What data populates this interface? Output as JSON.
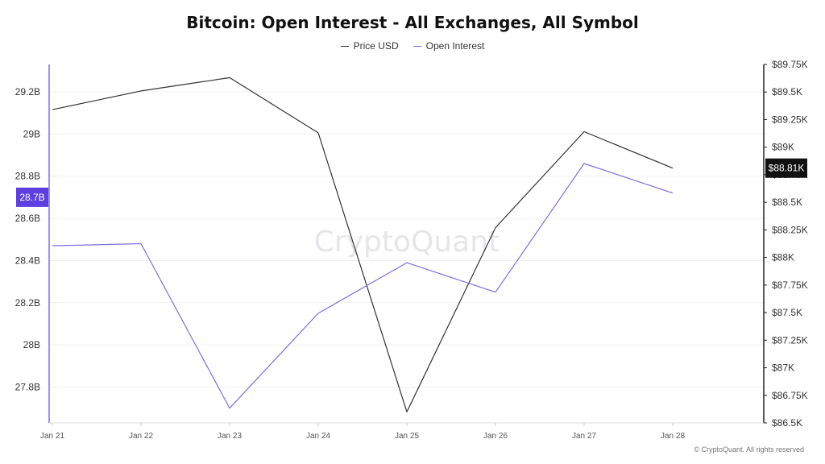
{
  "header": {
    "title": "Bitcoin: Open Interest - All Exchanges, All Symbol"
  },
  "legend": {
    "price_label": "Price USD",
    "oi_label": "Open Interest"
  },
  "watermark": "CryptoQuant",
  "footer": {
    "credit": "© CryptoQuant. All rights reserved"
  },
  "chart_data": {
    "type": "line",
    "title": "Bitcoin: Open Interest - All Exchanges, All Symbol",
    "x": [
      "Jan 21",
      "Jan 22",
      "Jan 23",
      "Jan 24",
      "Jan 25",
      "Jan 26",
      "Jan 27",
      "Jan 28"
    ],
    "series": [
      {
        "name": "Price USD",
        "axis": "right",
        "color": "#333333",
        "values": [
          89340,
          89510,
          89630,
          89130,
          86600,
          88270,
          89140,
          88810
        ]
      },
      {
        "name": "Open Interest",
        "axis": "left",
        "color": "#7b6fe0",
        "values": [
          28470000000,
          28480000000,
          27700000000,
          28150000000,
          28390000000,
          28250000000,
          28860000000,
          28720000000
        ]
      }
    ],
    "left_axis": {
      "ylim": [
        27630000000,
        29330000000
      ],
      "ticks": [
        27800000000,
        28000000000,
        28200000000,
        28400000000,
        28600000000,
        28800000000,
        29000000000,
        29200000000
      ],
      "tick_labels": [
        "27.8B",
        "28B",
        "28.2B",
        "28.4B",
        "28.6B",
        "28.8B",
        "29B",
        "29.2B"
      ],
      "current_label": "28.7B",
      "current_value": 28700000000,
      "current_color": "#5b3fe0"
    },
    "right_axis": {
      "ylim": [
        86500,
        89750
      ],
      "ticks": [
        86500,
        86750,
        87000,
        87250,
        87500,
        87750,
        88000,
        88250,
        88500,
        88750,
        89000,
        89250,
        89500,
        89750
      ],
      "tick_labels": [
        "$86.5K",
        "$86.75K",
        "$87K",
        "$87.25K",
        "$87.5K",
        "$87.75K",
        "$88K",
        "$88.25K",
        "$88.5K",
        "$88.75K",
        "$89K",
        "$89.25K",
        "$89.5K",
        "$89.75K"
      ],
      "current_label": "$88.81K",
      "current_value": 88810,
      "current_color": "#111111"
    },
    "grid": true,
    "legend_position": "top-center"
  }
}
